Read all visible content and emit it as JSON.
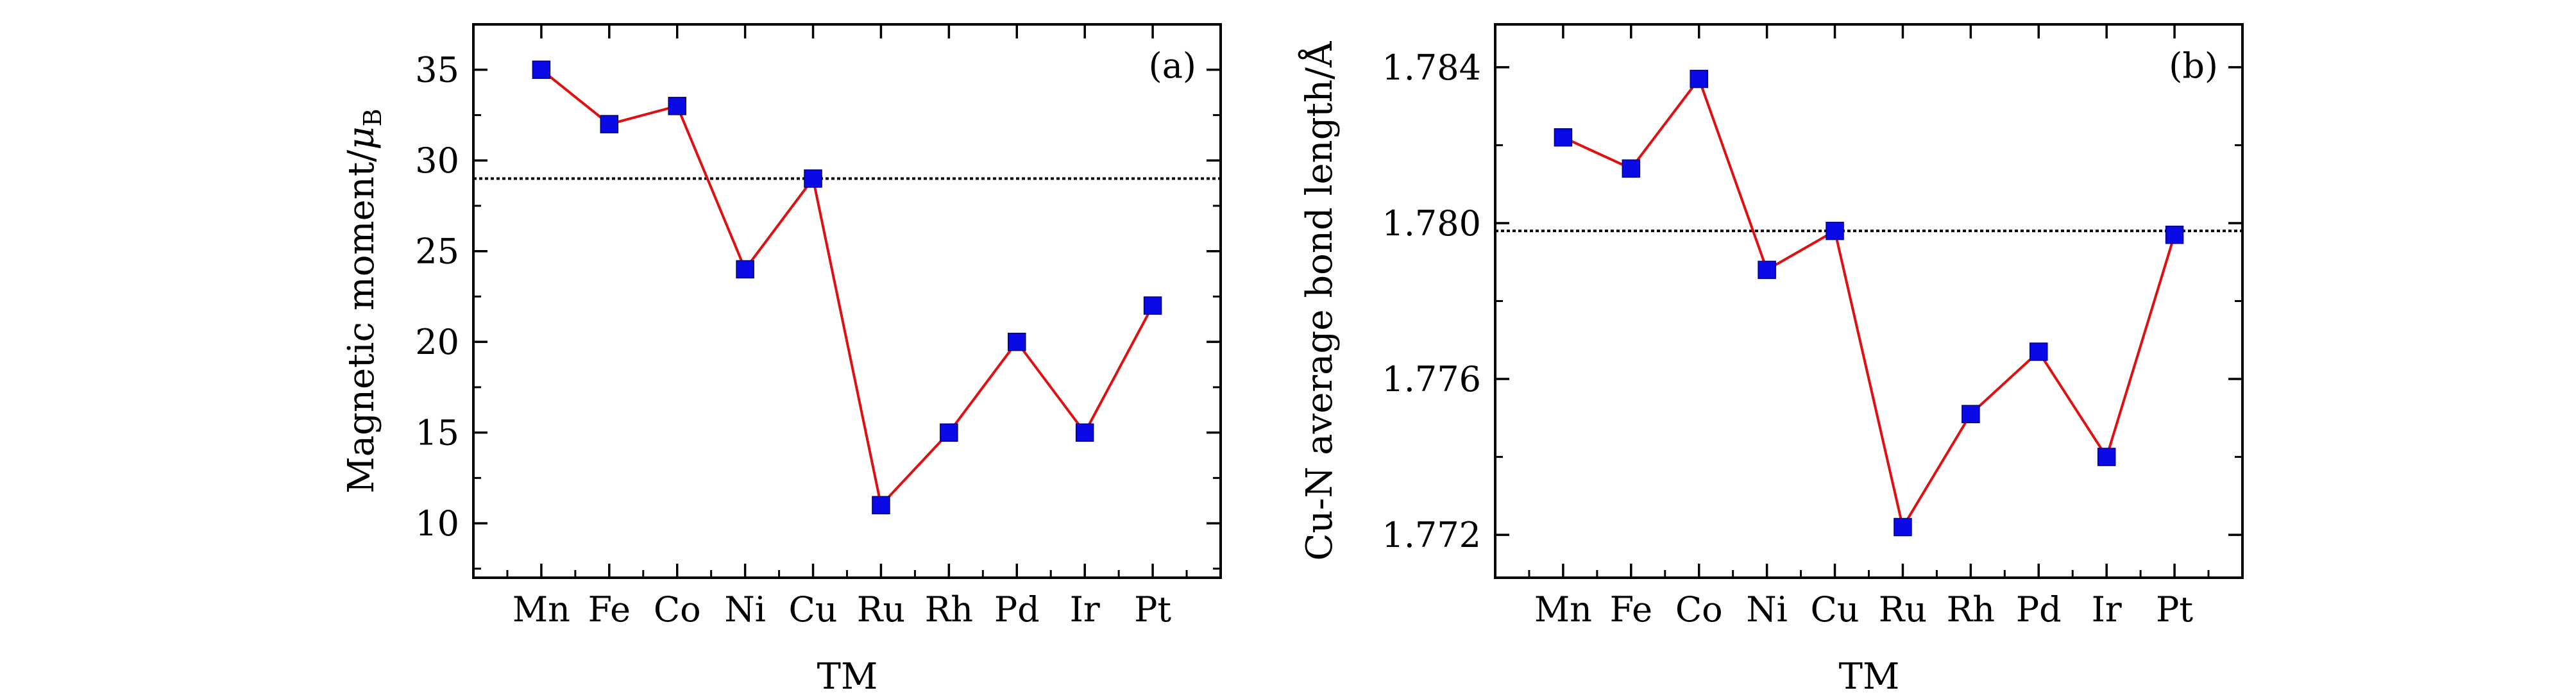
{
  "chart_data": [
    {
      "type": "line",
      "panel_label": "(a)",
      "categories": [
        "Mn",
        "Fe",
        "Co",
        "Ni",
        "Cu",
        "Ru",
        "Rh",
        "Pd",
        "Ir",
        "Pt"
      ],
      "series": [
        {
          "values": [
            35,
            32,
            33,
            24,
            29,
            11,
            15,
            20,
            15,
            22
          ]
        }
      ],
      "reference_line": 29,
      "xlabel": "TM",
      "ylabel_main": "Magnetic moment/",
      "ylabel_symbol": "μ",
      "ylabel_subscript": "B",
      "ylim": [
        7,
        37.5
      ],
      "yticks": [
        10,
        15,
        20,
        25,
        30,
        35
      ],
      "ytick_labels": [
        "10",
        "15",
        "20",
        "25",
        "30",
        "35"
      ],
      "grid": false,
      "colors": {
        "line": "#e01010",
        "marker": "#0a0ae6",
        "reference": "#000000"
      }
    },
    {
      "type": "line",
      "panel_label": "(b)",
      "categories": [
        "Mn",
        "Fe",
        "Co",
        "Ni",
        "Cu",
        "Ru",
        "Rh",
        "Pd",
        "Ir",
        "Pt"
      ],
      "series": [
        {
          "values": [
            1.7822,
            1.7814,
            1.7837,
            1.7788,
            1.7798,
            1.7722,
            1.7751,
            1.7767,
            1.774,
            1.7797
          ]
        }
      ],
      "reference_line": 1.7798,
      "xlabel": "TM",
      "ylabel_main": "Cu-N average bond length/Å",
      "ylim": [
        1.7709,
        1.7851
      ],
      "yticks": [
        1.772,
        1.776,
        1.78,
        1.784
      ],
      "ytick_labels": [
        "1.772",
        "1.776",
        "1.780",
        "1.784"
      ],
      "grid": false,
      "colors": {
        "line": "#e01010",
        "marker": "#0a0ae6",
        "reference": "#000000"
      }
    }
  ]
}
